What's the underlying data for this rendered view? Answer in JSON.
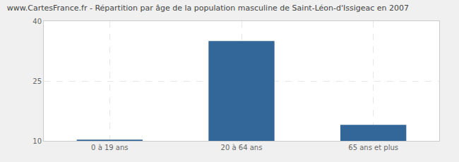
{
  "chart_data": {
    "type": "bar",
    "title": "www.CartesFrance.fr - Répartition par âge de la population masculine de Saint-Léon-d'Issigeac en 2007",
    "categories": [
      "0 à 19 ans",
      "20 à 64 ans",
      "65 ans et plus"
    ],
    "values": [
      10.3,
      35,
      14
    ],
    "color": "#336699",
    "ylim": [
      10,
      40
    ],
    "yticks": [
      10,
      25,
      40
    ],
    "grid": true
  }
}
